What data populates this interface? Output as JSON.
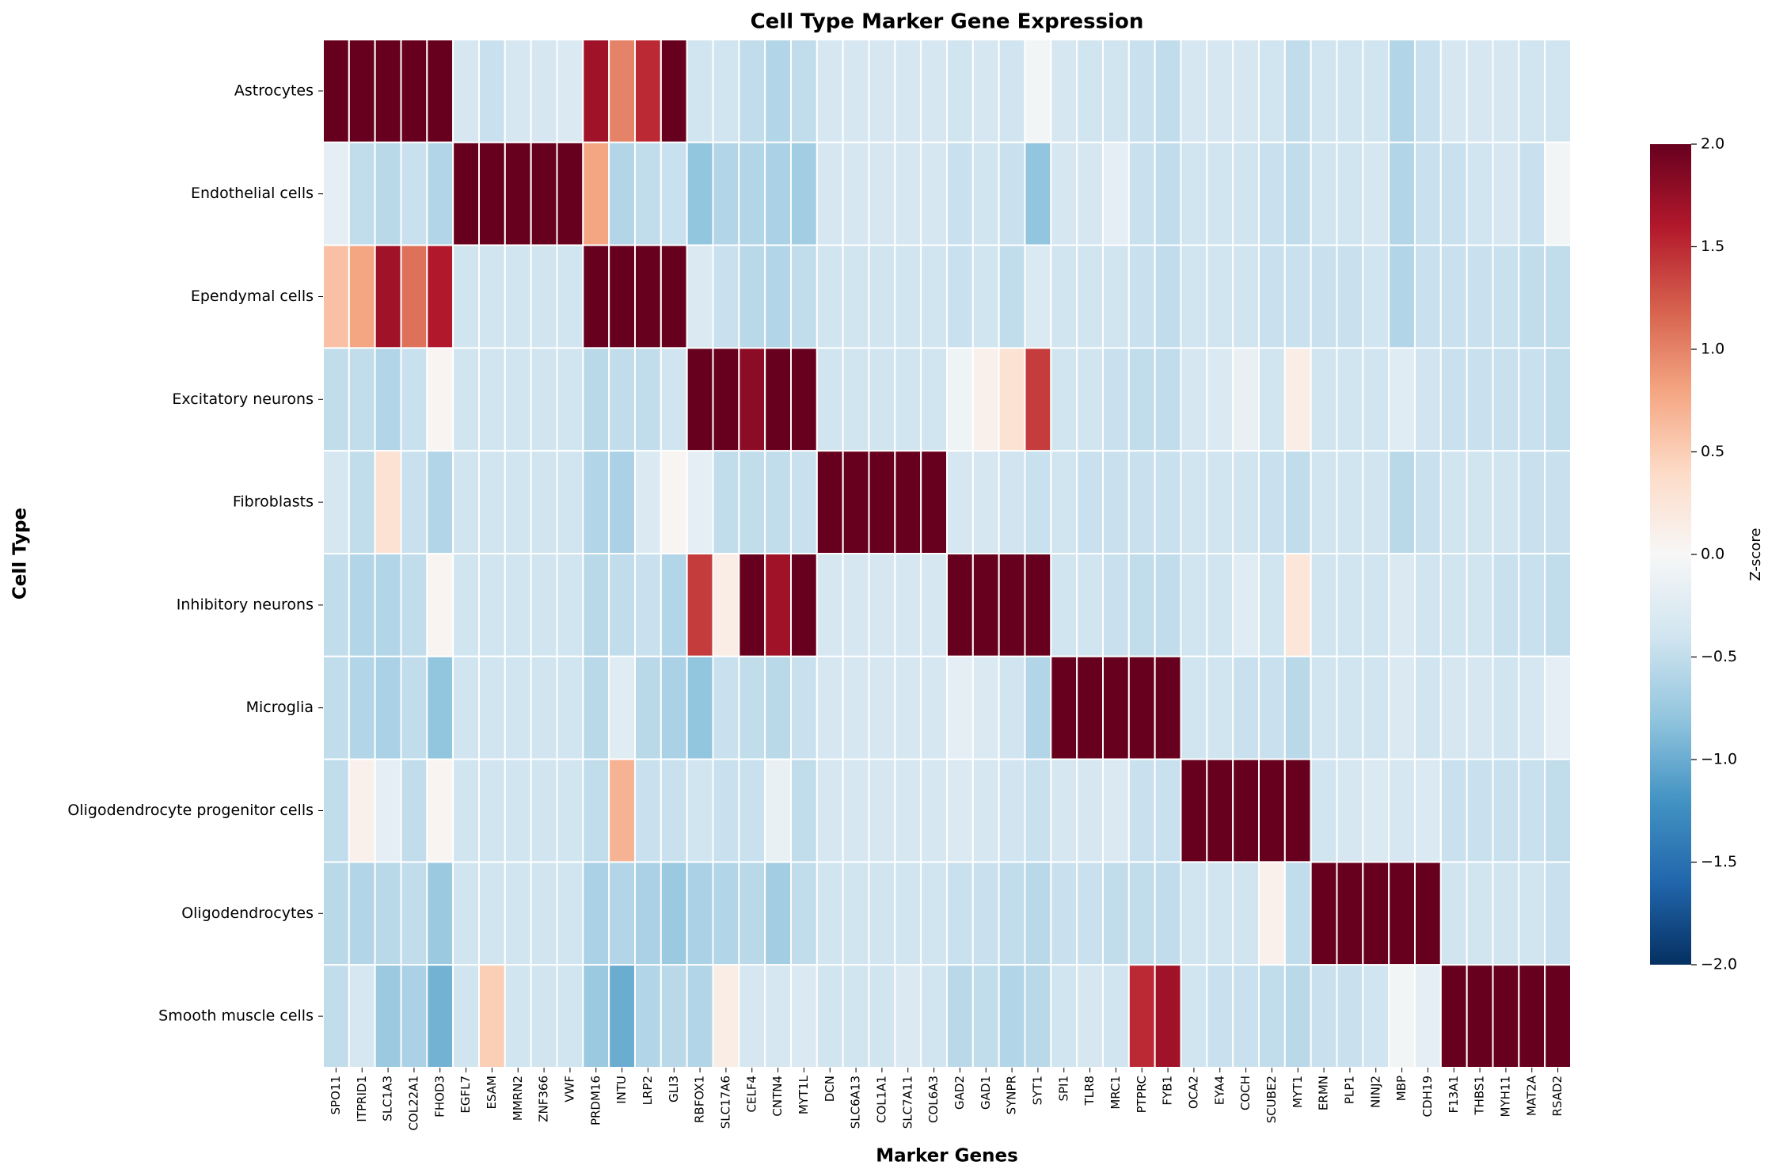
{
  "chart_data": {
    "type": "heatmap",
    "title": "Cell Type Marker Gene Expression",
    "x_label": "Marker Genes",
    "y_label": "Cell Type",
    "colorbar_label": "Z-score",
    "x_categories": [
      "SPO11",
      "ITPRID1",
      "SLC1A3",
      "COL22A1",
      "FHOD3",
      "EGFL7",
      "ESAM",
      "MMRN2",
      "ZNF366",
      "VWF",
      "PRDM16",
      "INTU",
      "LRP2",
      "GLI3",
      "RBFOX1",
      "SLC17A6",
      "CELF4",
      "CNTN4",
      "MYT1L",
      "DCN",
      "SLC6A13",
      "COL1A1",
      "SLC7A11",
      "COL6A3",
      "GAD2",
      "GAD1",
      "SYNPR",
      "SYT1",
      "SPI1",
      "TLR8",
      "MRC1",
      "PTPRC",
      "FYB1",
      "OCA2",
      "EYA4",
      "COCH",
      "SCUBE2",
      "MYT1",
      "ERMN",
      "PLP1",
      "NINJ2",
      "MBP",
      "CDH19",
      "F13A1",
      "THBS1",
      "MYH11",
      "MAT2A",
      "RSAD2"
    ],
    "y_categories": [
      "Astrocytes",
      "Endothelial cells",
      "Ependymal cells",
      "Excitatory neurons",
      "Fibroblasts",
      "Inhibitory neurons",
      "Microglia",
      "Oligodendrocyte progenitor cells",
      "Oligodendrocytes",
      "Smooth muscle cells"
    ],
    "values": [
      [
        2.6,
        2.4,
        2.1,
        2.3,
        2.2,
        -0.35,
        -0.45,
        -0.35,
        -0.35,
        -0.3,
        1.7,
        1.0,
        1.5,
        2.1,
        -0.4,
        -0.4,
        -0.5,
        -0.6,
        -0.5,
        -0.35,
        -0.35,
        -0.35,
        -0.35,
        -0.35,
        -0.4,
        -0.35,
        -0.4,
        -0.05,
        -0.35,
        -0.4,
        -0.4,
        -0.45,
        -0.5,
        -0.35,
        -0.35,
        -0.35,
        -0.4,
        -0.5,
        -0.4,
        -0.4,
        -0.4,
        -0.6,
        -0.45,
        -0.35,
        -0.35,
        -0.35,
        -0.4,
        -0.4
      ],
      [
        -0.2,
        -0.5,
        -0.55,
        -0.45,
        -0.6,
        2.3,
        2.3,
        2.3,
        2.3,
        2.3,
        0.8,
        -0.6,
        -0.5,
        -0.45,
        -0.8,
        -0.6,
        -0.6,
        -0.65,
        -0.7,
        -0.35,
        -0.35,
        -0.35,
        -0.35,
        -0.35,
        -0.45,
        -0.4,
        -0.45,
        -0.8,
        -0.35,
        -0.35,
        -0.2,
        -0.45,
        -0.5,
        -0.4,
        -0.4,
        -0.4,
        -0.45,
        -0.5,
        -0.4,
        -0.4,
        -0.35,
        -0.6,
        -0.45,
        -0.45,
        -0.4,
        -0.35,
        -0.45,
        -0.05
      ],
      [
        0.6,
        0.8,
        1.7,
        1.1,
        1.6,
        -0.4,
        -0.4,
        -0.4,
        -0.4,
        -0.4,
        2.2,
        2.4,
        2.3,
        2.1,
        -0.3,
        -0.45,
        -0.55,
        -0.6,
        -0.5,
        -0.4,
        -0.4,
        -0.4,
        -0.4,
        -0.4,
        -0.45,
        -0.4,
        -0.5,
        -0.3,
        -0.4,
        -0.4,
        -0.4,
        -0.45,
        -0.5,
        -0.4,
        -0.4,
        -0.4,
        -0.45,
        -0.45,
        -0.45,
        -0.45,
        -0.4,
        -0.6,
        -0.45,
        -0.45,
        -0.45,
        -0.45,
        -0.5,
        -0.5
      ],
      [
        -0.5,
        -0.5,
        -0.6,
        -0.45,
        0.05,
        -0.4,
        -0.4,
        -0.4,
        -0.4,
        -0.4,
        -0.55,
        -0.5,
        -0.5,
        -0.4,
        2.3,
        2.2,
        1.8,
        2.2,
        2.0,
        -0.4,
        -0.4,
        -0.4,
        -0.4,
        -0.4,
        -0.1,
        0.1,
        0.3,
        1.4,
        -0.4,
        -0.4,
        -0.45,
        -0.5,
        -0.5,
        -0.35,
        -0.3,
        -0.15,
        -0.4,
        0.15,
        -0.4,
        -0.4,
        -0.4,
        -0.25,
        -0.4,
        -0.45,
        -0.45,
        -0.45,
        -0.45,
        -0.5
      ],
      [
        -0.35,
        -0.5,
        0.3,
        -0.45,
        -0.6,
        -0.4,
        -0.4,
        -0.4,
        -0.4,
        -0.4,
        -0.6,
        -0.65,
        -0.3,
        0.05,
        -0.2,
        -0.5,
        -0.5,
        -0.5,
        -0.45,
        2.3,
        2.3,
        2.3,
        2.3,
        2.3,
        -0.35,
        -0.35,
        -0.4,
        -0.45,
        -0.4,
        -0.45,
        -0.45,
        -0.45,
        -0.45,
        -0.4,
        -0.4,
        -0.4,
        -0.45,
        -0.5,
        -0.4,
        -0.4,
        -0.4,
        -0.55,
        -0.45,
        -0.4,
        -0.4,
        -0.4,
        -0.45,
        -0.45
      ],
      [
        -0.5,
        -0.6,
        -0.6,
        -0.5,
        0.05,
        -0.4,
        -0.4,
        -0.4,
        -0.4,
        -0.4,
        -0.55,
        -0.5,
        -0.45,
        -0.6,
        1.4,
        0.15,
        2.1,
        1.7,
        2.0,
        -0.35,
        -0.35,
        -0.35,
        -0.35,
        -0.35,
        2.2,
        2.3,
        2.1,
        2.2,
        -0.4,
        -0.4,
        -0.45,
        -0.5,
        -0.5,
        -0.4,
        -0.4,
        -0.25,
        -0.4,
        0.25,
        -0.4,
        -0.4,
        -0.4,
        -0.3,
        -0.4,
        -0.4,
        -0.4,
        -0.45,
        -0.45,
        -0.5
      ],
      [
        -0.5,
        -0.6,
        -0.65,
        -0.5,
        -0.8,
        -0.4,
        -0.4,
        -0.4,
        -0.4,
        -0.4,
        -0.55,
        -0.25,
        -0.55,
        -0.65,
        -0.8,
        -0.45,
        -0.5,
        -0.55,
        -0.45,
        -0.35,
        -0.35,
        -0.35,
        -0.35,
        -0.35,
        -0.2,
        -0.3,
        -0.4,
        -0.6,
        2.2,
        2.3,
        2.4,
        2.2,
        2.3,
        -0.4,
        -0.4,
        -0.45,
        -0.45,
        -0.55,
        -0.4,
        -0.4,
        -0.4,
        -0.3,
        -0.4,
        -0.35,
        -0.35,
        -0.4,
        -0.35,
        -0.2
      ],
      [
        -0.5,
        0.1,
        -0.2,
        -0.5,
        0.05,
        -0.4,
        -0.4,
        -0.4,
        -0.4,
        -0.4,
        -0.5,
        0.7,
        -0.45,
        -0.45,
        -0.4,
        -0.45,
        -0.45,
        -0.15,
        -0.5,
        -0.35,
        -0.35,
        -0.35,
        -0.35,
        -0.35,
        -0.3,
        -0.35,
        -0.4,
        -0.45,
        -0.35,
        -0.35,
        -0.3,
        -0.45,
        -0.45,
        2.2,
        2.2,
        2.3,
        2.1,
        2.2,
        -0.4,
        -0.35,
        -0.3,
        -0.35,
        -0.3,
        -0.45,
        -0.45,
        -0.45,
        -0.45,
        -0.5
      ],
      [
        -0.55,
        -0.6,
        -0.55,
        -0.5,
        -0.75,
        -0.4,
        -0.4,
        -0.4,
        -0.4,
        -0.4,
        -0.65,
        -0.6,
        -0.65,
        -0.75,
        -0.65,
        -0.6,
        -0.55,
        -0.7,
        -0.5,
        -0.4,
        -0.4,
        -0.4,
        -0.4,
        -0.4,
        -0.45,
        -0.45,
        -0.5,
        -0.55,
        -0.45,
        -0.45,
        -0.5,
        -0.5,
        -0.5,
        -0.4,
        -0.4,
        -0.4,
        0.1,
        -0.5,
        2.3,
        2.2,
        2.4,
        2.4,
        2.3,
        -0.4,
        -0.4,
        -0.4,
        -0.4,
        -0.45
      ],
      [
        -0.5,
        -0.35,
        -0.75,
        -0.65,
        -0.95,
        -0.4,
        0.5,
        -0.4,
        -0.4,
        -0.4,
        -0.75,
        -1.0,
        -0.6,
        -0.55,
        -0.6,
        0.15,
        -0.35,
        -0.35,
        -0.3,
        -0.4,
        -0.4,
        -0.4,
        -0.3,
        -0.4,
        -0.55,
        -0.5,
        -0.6,
        -0.55,
        -0.4,
        -0.35,
        -0.4,
        1.5,
        1.7,
        -0.4,
        -0.45,
        -0.45,
        -0.5,
        -0.55,
        -0.45,
        -0.45,
        -0.4,
        -0.05,
        -0.2,
        2.3,
        2.2,
        2.2,
        2.3,
        2.3
      ]
    ],
    "zlim": [
      -2,
      2
    ],
    "colorbar_ticks": [
      {
        "value": -2,
        "label": "−2.0"
      },
      {
        "value": -1.5,
        "label": "−1.5"
      },
      {
        "value": -1,
        "label": "−1.0"
      },
      {
        "value": -0.5,
        "label": "−0.5"
      },
      {
        "value": 0,
        "label": "0.0"
      },
      {
        "value": 0.5,
        "label": "0.5"
      },
      {
        "value": 1,
        "label": "1.0"
      },
      {
        "value": 1.5,
        "label": "1.5"
      },
      {
        "value": 2,
        "label": "2.0"
      }
    ],
    "colormap": [
      "#053061",
      "#2166ac",
      "#4393c3",
      "#92c5de",
      "#d1e5f0",
      "#f7f7f7",
      "#fddbc7",
      "#f4a582",
      "#d6604d",
      "#b2182b",
      "#67001f"
    ],
    "cell_border_color": "#ffffff"
  }
}
